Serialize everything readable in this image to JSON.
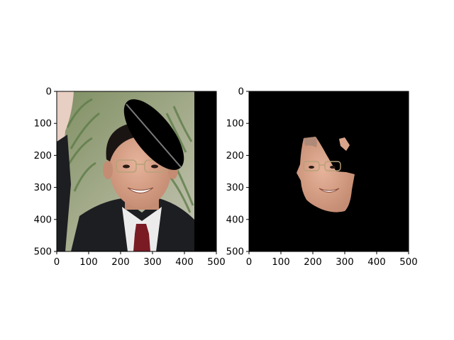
{
  "chart_data": [
    {
      "type": "image",
      "title": "",
      "xlabel": "",
      "ylabel": "",
      "xlim": [
        0,
        500
      ],
      "ylim": [
        500,
        0
      ],
      "xticks": [
        0,
        100,
        200,
        300,
        400,
        500
      ],
      "yticks": [
        0,
        100,
        200,
        300,
        400,
        500
      ],
      "xtick_labels": [
        "0",
        "100",
        "200",
        "300",
        "400",
        "500"
      ],
      "ytick_labels": [
        "0",
        "100",
        "200",
        "300",
        "400",
        "500"
      ],
      "content": "photo-with-occlusion",
      "grid": false
    },
    {
      "type": "image",
      "title": "",
      "xlabel": "",
      "ylabel": "",
      "xlim": [
        0,
        500
      ],
      "ylim": [
        500,
        0
      ],
      "xticks": [
        0,
        100,
        200,
        300,
        400,
        500
      ],
      "yticks": [
        0,
        100,
        200,
        300,
        400,
        500
      ],
      "xtick_labels": [
        "0",
        "100",
        "200",
        "300",
        "400",
        "500"
      ],
      "ytick_labels": [
        "0",
        "100",
        "200",
        "300",
        "400",
        "500"
      ],
      "content": "face-segmentation-mask",
      "grid": false
    }
  ],
  "colors": {
    "background": "#000000",
    "skin": "#d9a58a",
    "suit": "#1d1e22",
    "shirt": "#ecebeb",
    "tie": "#7a1b24",
    "hair": "#1a1513",
    "foliage": "#5f7d4a"
  }
}
